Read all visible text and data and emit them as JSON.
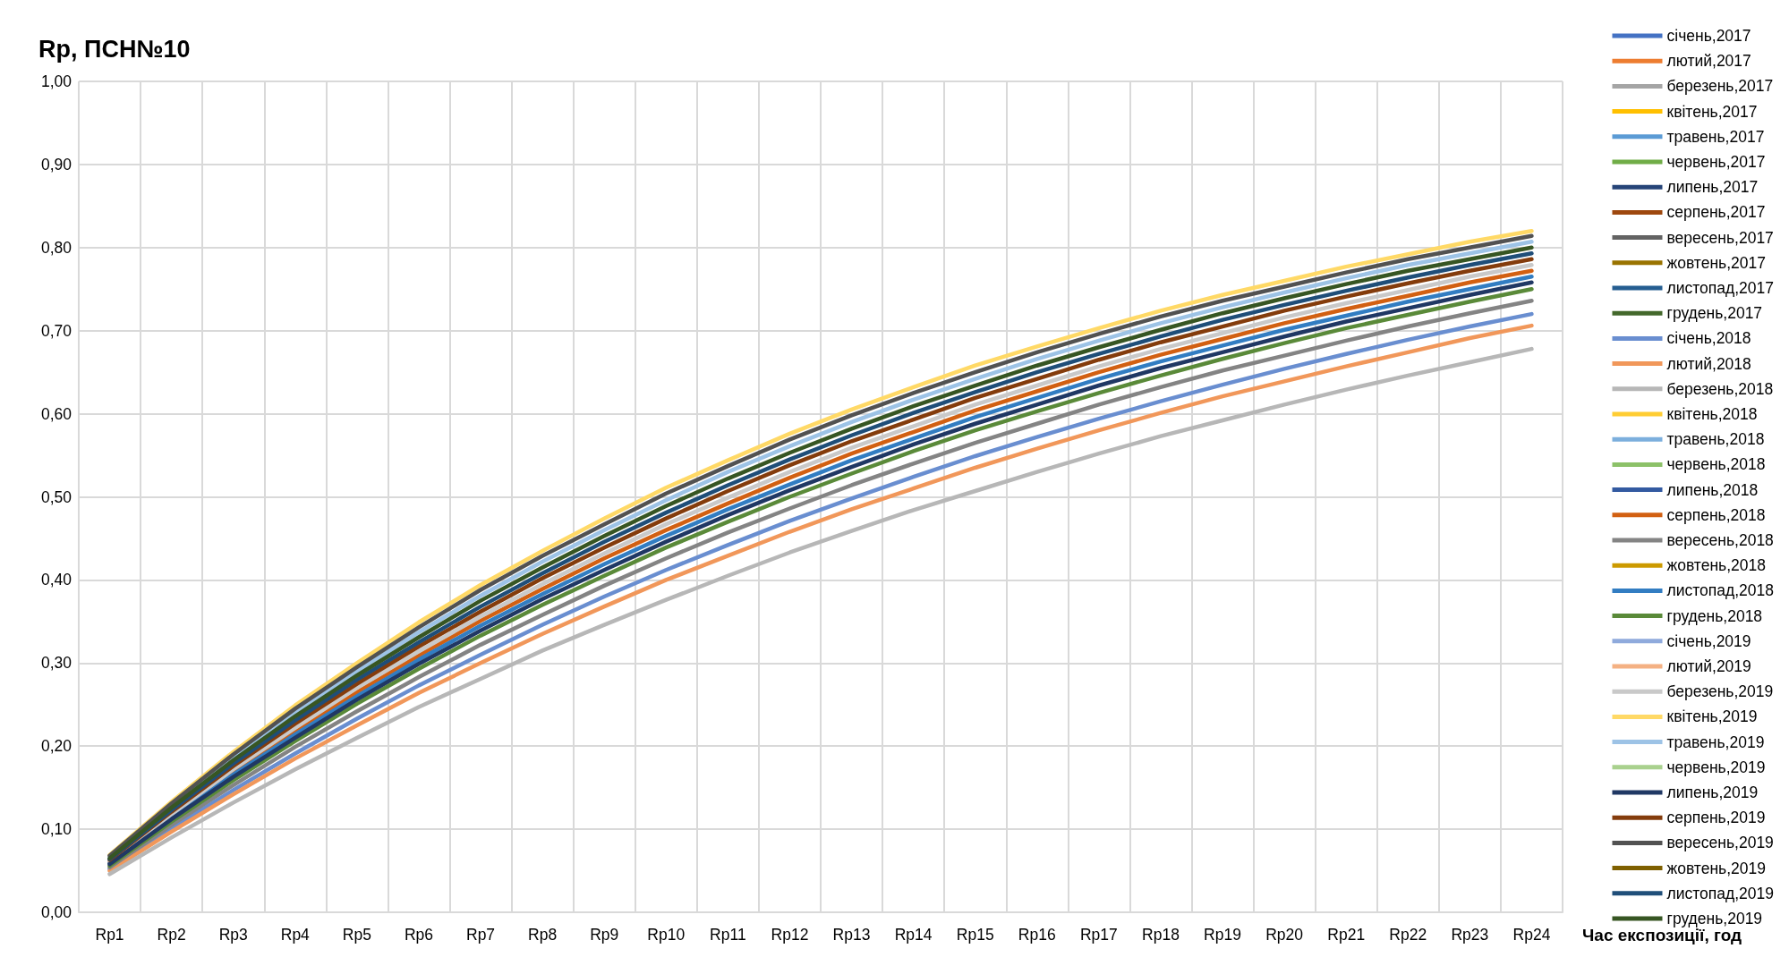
{
  "chart_data": {
    "type": "line",
    "title": "Rp, ПСН№10",
    "xlabel": "Час експозиції, год",
    "categories": [
      "Rp1",
      "Rp2",
      "Rp3",
      "Rp4",
      "Rp5",
      "Rp6",
      "Rp7",
      "Rp8",
      "Rp9",
      "Rp10",
      "Rp11",
      "Rp12",
      "Rp13",
      "Rp14",
      "Rp15",
      "Rp16",
      "Rp17",
      "Rp18",
      "Rp19",
      "Rp20",
      "Rp21",
      "Rp22",
      "Rp23",
      "Rp24"
    ],
    "ylim": [
      0,
      1
    ],
    "yticks": [
      {
        "value": 0,
        "label": "0,00"
      },
      {
        "value": 0.1,
        "label": "0,10"
      },
      {
        "value": 0.2,
        "label": "0,20"
      },
      {
        "value": 0.3,
        "label": "0,30"
      },
      {
        "value": 0.4,
        "label": "0,40"
      },
      {
        "value": 0.5,
        "label": "0,50"
      },
      {
        "value": 0.6,
        "label": "0,60"
      },
      {
        "value": 0.7,
        "label": "0,70"
      },
      {
        "value": 0.8,
        "label": "0,80"
      },
      {
        "value": 0.9,
        "label": "0,90"
      },
      {
        "value": 1,
        "label": "1,00"
      }
    ],
    "grid": true,
    "legend": "right",
    "marker": "none",
    "line_style": "solid",
    "series": [
      {
        "name": "січень,2017",
        "color": "#4472c4",
        "values": [
          null,
          null,
          null,
          null,
          null,
          null,
          null,
          null,
          null,
          null,
          null,
          null,
          null,
          null,
          null,
          null,
          null,
          null,
          null,
          null,
          null,
          null,
          null,
          null
        ]
      },
      {
        "name": "лютий,2017",
        "color": "#ed7d31",
        "values": [
          null,
          null,
          null,
          null,
          null,
          null,
          null,
          null,
          null,
          null,
          null,
          null,
          null,
          null,
          null,
          null,
          null,
          null,
          null,
          null,
          null,
          null,
          null,
          null
        ]
      },
      {
        "name": "березень,2017",
        "color": "#a5a5a5",
        "values": [
          null,
          null,
          null,
          null,
          null,
          null,
          null,
          null,
          null,
          null,
          null,
          null,
          null,
          null,
          null,
          null,
          null,
          null,
          null,
          null,
          null,
          null,
          null,
          null
        ]
      },
      {
        "name": "квітень,2017",
        "color": "#ffc000",
        "values": [
          null,
          null,
          null,
          null,
          null,
          null,
          null,
          null,
          null,
          null,
          null,
          null,
          null,
          null,
          null,
          null,
          null,
          null,
          null,
          null,
          null,
          null,
          null,
          null
        ]
      },
      {
        "name": "травень,2017",
        "color": "#5b9bd5",
        "values": [
          null,
          null,
          null,
          null,
          null,
          null,
          null,
          null,
          null,
          null,
          null,
          null,
          null,
          null,
          null,
          null,
          null,
          null,
          null,
          null,
          null,
          null,
          null,
          null
        ]
      },
      {
        "name": "червень,2017",
        "color": "#70ad47",
        "values": [
          null,
          null,
          null,
          null,
          null,
          null,
          null,
          null,
          null,
          null,
          null,
          null,
          null,
          null,
          null,
          null,
          null,
          null,
          null,
          null,
          null,
          null,
          null,
          null
        ]
      },
      {
        "name": "липень,2017",
        "color": "#264478",
        "values": [
          null,
          null,
          null,
          null,
          null,
          null,
          null,
          null,
          null,
          null,
          null,
          null,
          null,
          null,
          null,
          null,
          null,
          null,
          null,
          null,
          null,
          null,
          null,
          null
        ]
      },
      {
        "name": "серпень,2017",
        "color": "#9e480e",
        "values": [
          null,
          null,
          null,
          null,
          null,
          null,
          null,
          null,
          null,
          null,
          null,
          null,
          null,
          null,
          null,
          null,
          null,
          null,
          null,
          null,
          null,
          null,
          null,
          null
        ]
      },
      {
        "name": "вересень,2017",
        "color": "#636363",
        "values": [
          null,
          null,
          null,
          null,
          null,
          null,
          null,
          null,
          null,
          null,
          null,
          null,
          null,
          null,
          null,
          null,
          null,
          null,
          null,
          null,
          null,
          null,
          null,
          null
        ]
      },
      {
        "name": "жовтень,2017",
        "color": "#997300",
        "values": [
          null,
          null,
          null,
          null,
          null,
          null,
          null,
          null,
          null,
          null,
          null,
          null,
          null,
          null,
          null,
          null,
          null,
          null,
          null,
          null,
          null,
          null,
          null,
          null
        ]
      },
      {
        "name": "листопад,2017",
        "color": "#255e91",
        "values": [
          null,
          null,
          null,
          null,
          null,
          null,
          null,
          null,
          null,
          null,
          null,
          null,
          null,
          null,
          null,
          null,
          null,
          null,
          null,
          null,
          null,
          null,
          null,
          null
        ]
      },
      {
        "name": "грудень,2017",
        "color": "#43682b",
        "values": [
          null,
          null,
          null,
          null,
          null,
          null,
          null,
          null,
          null,
          null,
          null,
          null,
          null,
          null,
          null,
          null,
          null,
          null,
          null,
          null,
          null,
          null,
          null,
          null
        ]
      },
      {
        "name": "січень,2018",
        "color": "#698ed0",
        "values": [
          0.052,
          0.101,
          0.147,
          0.191,
          0.233,
          0.273,
          0.31,
          0.346,
          0.38,
          0.412,
          0.442,
          0.471,
          0.498,
          0.524,
          0.549,
          0.572,
          0.594,
          0.615,
          0.635,
          0.654,
          0.672,
          0.689,
          0.705,
          0.72
        ]
      },
      {
        "name": "лютий,2018",
        "color": "#f1975a",
        "values": [
          0.05,
          0.097,
          0.142,
          0.185,
          0.225,
          0.264,
          0.3,
          0.335,
          0.368,
          0.4,
          0.429,
          0.458,
          0.485,
          0.51,
          0.535,
          0.558,
          0.58,
          0.601,
          0.621,
          0.639,
          0.657,
          0.674,
          0.691,
          0.706
        ]
      },
      {
        "name": "березень,2018",
        "color": "#b7b7b7",
        "values": [
          0.046,
          0.09,
          0.132,
          0.172,
          0.21,
          0.247,
          0.281,
          0.315,
          0.346,
          0.376,
          0.405,
          0.433,
          0.459,
          0.484,
          0.507,
          0.53,
          0.552,
          0.573,
          0.592,
          0.611,
          0.629,
          0.646,
          0.662,
          0.678
        ]
      },
      {
        "name": "квітень,2018",
        "color": "#ffcd33",
        "values": [
          null,
          null,
          null,
          null,
          null,
          null,
          null,
          null,
          null,
          null,
          null,
          null,
          null,
          null,
          null,
          null,
          null,
          null,
          null,
          null,
          null,
          null,
          null,
          null
        ]
      },
      {
        "name": "травень,2018",
        "color": "#7cafdd",
        "values": [
          null,
          null,
          null,
          null,
          null,
          null,
          null,
          null,
          null,
          null,
          null,
          null,
          null,
          null,
          null,
          null,
          null,
          null,
          null,
          null,
          null,
          null,
          null,
          null
        ]
      },
      {
        "name": "червень,2018",
        "color": "#8cc168",
        "values": [
          null,
          null,
          null,
          null,
          null,
          null,
          null,
          null,
          null,
          null,
          null,
          null,
          null,
          null,
          null,
          null,
          null,
          null,
          null,
          null,
          null,
          null,
          null,
          null
        ]
      },
      {
        "name": "липень,2018",
        "color": "#335aa1",
        "values": [
          null,
          null,
          null,
          null,
          null,
          null,
          null,
          null,
          null,
          null,
          null,
          null,
          null,
          null,
          null,
          null,
          null,
          null,
          null,
          null,
          null,
          null,
          null,
          null
        ]
      },
      {
        "name": "серпень,2018",
        "color": "#d26012",
        "values": [
          0.06,
          0.116,
          0.169,
          0.218,
          0.265,
          0.309,
          0.351,
          0.389,
          0.426,
          0.46,
          0.492,
          0.523,
          0.552,
          0.578,
          0.604,
          0.627,
          0.65,
          0.671,
          0.69,
          0.709,
          0.726,
          0.742,
          0.758,
          0.772
        ]
      },
      {
        "name": "вересень,2018",
        "color": "#848484",
        "values": [
          0.054,
          0.105,
          0.153,
          0.199,
          0.242,
          0.283,
          0.322,
          0.358,
          0.393,
          0.426,
          0.457,
          0.486,
          0.514,
          0.54,
          0.565,
          0.588,
          0.611,
          0.632,
          0.652,
          0.67,
          0.688,
          0.705,
          0.721,
          0.736
        ]
      },
      {
        "name": "жовтень,2018",
        "color": "#cc9a00",
        "values": [
          null,
          null,
          null,
          null,
          null,
          null,
          null,
          null,
          null,
          null,
          null,
          null,
          null,
          null,
          null,
          null,
          null,
          null,
          null,
          null,
          null,
          null,
          null,
          null
        ]
      },
      {
        "name": "листопад,2018",
        "color": "#327dc2",
        "values": [
          0.059,
          0.114,
          0.166,
          0.214,
          0.26,
          0.304,
          0.345,
          0.383,
          0.419,
          0.453,
          0.485,
          0.515,
          0.544,
          0.57,
          0.596,
          0.619,
          0.642,
          0.663,
          0.682,
          0.701,
          0.718,
          0.735,
          0.75,
          0.765
        ]
      },
      {
        "name": "грудень,2018",
        "color": "#5a8a39",
        "values": [
          0.056,
          0.109,
          0.159,
          0.206,
          0.251,
          0.293,
          0.333,
          0.37,
          0.405,
          0.439,
          0.47,
          0.5,
          0.528,
          0.555,
          0.58,
          0.603,
          0.625,
          0.646,
          0.666,
          0.685,
          0.703,
          0.719,
          0.735,
          0.75
        ]
      },
      {
        "name": "січень,2019",
        "color": "#8faadc",
        "values": [
          null,
          null,
          null,
          null,
          null,
          null,
          null,
          null,
          null,
          null,
          null,
          null,
          null,
          null,
          null,
          null,
          null,
          null,
          null,
          null,
          null,
          null,
          null,
          null
        ]
      },
      {
        "name": "лютий,2019",
        "color": "#f4b183",
        "values": [
          null,
          null,
          null,
          null,
          null,
          null,
          null,
          null,
          null,
          null,
          null,
          null,
          null,
          null,
          null,
          null,
          null,
          null,
          null,
          null,
          null,
          null,
          null,
          null
        ]
      },
      {
        "name": "березень,2019",
        "color": "#c9c9c9",
        "values": [
          0.061,
          0.118,
          0.172,
          0.222,
          0.27,
          0.314,
          0.356,
          0.395,
          0.432,
          0.467,
          0.499,
          0.53,
          0.559,
          0.585,
          0.611,
          0.634,
          0.657,
          0.678,
          0.697,
          0.716,
          0.733,
          0.749,
          0.765,
          0.779
        ]
      },
      {
        "name": "квітень,2019",
        "color": "#ffd966",
        "values": [
          0.069,
          0.133,
          0.193,
          0.249,
          0.3,
          0.349,
          0.394,
          0.435,
          0.474,
          0.511,
          0.544,
          0.576,
          0.605,
          0.632,
          0.658,
          0.681,
          0.703,
          0.724,
          0.743,
          0.76,
          0.777,
          0.792,
          0.807,
          0.82
        ]
      },
      {
        "name": "травень,2019",
        "color": "#9dc3e6",
        "values": [
          0.066,
          0.128,
          0.186,
          0.24,
          0.29,
          0.337,
          0.381,
          0.422,
          0.46,
          0.496,
          0.53,
          0.561,
          0.59,
          0.617,
          0.642,
          0.666,
          0.688,
          0.709,
          0.728,
          0.746,
          0.763,
          0.779,
          0.793,
          0.807
        ]
      },
      {
        "name": "червень,2019",
        "color": "#a9d18e",
        "values": [
          null,
          null,
          null,
          null,
          null,
          null,
          null,
          null,
          null,
          null,
          null,
          null,
          null,
          null,
          null,
          null,
          null,
          null,
          null,
          null,
          null,
          null,
          null,
          null
        ]
      },
      {
        "name": "липень,2019",
        "color": "#203864",
        "values": [
          0.058,
          0.112,
          0.163,
          0.21,
          0.256,
          0.299,
          0.339,
          0.377,
          0.412,
          0.446,
          0.478,
          0.508,
          0.536,
          0.563,
          0.588,
          0.611,
          0.634,
          0.655,
          0.674,
          0.693,
          0.711,
          0.727,
          0.743,
          0.758
        ]
      },
      {
        "name": "серпень,2019",
        "color": "#843c0c",
        "values": [
          0.063,
          0.121,
          0.176,
          0.227,
          0.275,
          0.32,
          0.362,
          0.402,
          0.439,
          0.474,
          0.507,
          0.538,
          0.567,
          0.593,
          0.619,
          0.642,
          0.665,
          0.686,
          0.705,
          0.724,
          0.741,
          0.757,
          0.772,
          0.786
        ]
      },
      {
        "name": "вересень,2019",
        "color": "#525252",
        "values": [
          0.068,
          0.131,
          0.19,
          0.245,
          0.295,
          0.343,
          0.388,
          0.429,
          0.467,
          0.504,
          0.537,
          0.569,
          0.598,
          0.625,
          0.65,
          0.674,
          0.696,
          0.717,
          0.736,
          0.753,
          0.77,
          0.786,
          0.8,
          0.814
        ]
      },
      {
        "name": "жовтень,2019",
        "color": "#7f6000",
        "values": [
          null,
          null,
          null,
          null,
          null,
          null,
          null,
          null,
          null,
          null,
          null,
          null,
          null,
          null,
          null,
          null,
          null,
          null,
          null,
          null,
          null,
          null,
          null,
          null
        ]
      },
      {
        "name": "листопад,2019",
        "color": "#1f4e79",
        "values": [
          0.064,
          0.123,
          0.179,
          0.231,
          0.28,
          0.325,
          0.368,
          0.408,
          0.446,
          0.481,
          0.514,
          0.545,
          0.574,
          0.601,
          0.626,
          0.65,
          0.672,
          0.693,
          0.713,
          0.731,
          0.748,
          0.764,
          0.779,
          0.793
        ]
      },
      {
        "name": "грудень,2019",
        "color": "#375623",
        "values": [
          0.065,
          0.126,
          0.183,
          0.236,
          0.285,
          0.331,
          0.375,
          0.415,
          0.453,
          0.489,
          0.522,
          0.553,
          0.582,
          0.609,
          0.634,
          0.658,
          0.68,
          0.701,
          0.721,
          0.739,
          0.756,
          0.772,
          0.786,
          0.8
        ]
      }
    ]
  }
}
